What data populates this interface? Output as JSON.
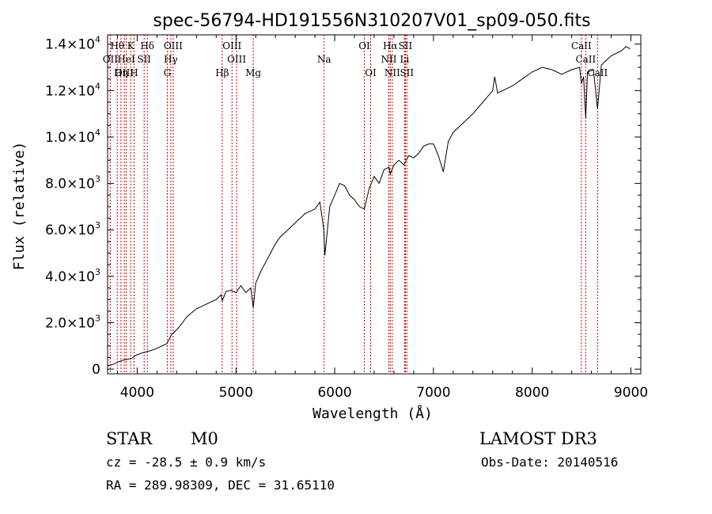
{
  "chart_data": {
    "type": "line",
    "title": "spec-56794-HD191556N310207V01_sp09-050.fits",
    "xlabel": "Wavelength (Å)",
    "ylabel": "Flux (relative)",
    "xlim": [
      3700,
      9100
    ],
    "ylim": [
      -200,
      14400
    ],
    "x_ticks": [
      {
        "value": 4000,
        "label": "4000"
      },
      {
        "value": 5000,
        "label": "5000"
      },
      {
        "value": 6000,
        "label": "6000"
      },
      {
        "value": 7000,
        "label": "7000"
      },
      {
        "value": 8000,
        "label": "8000"
      },
      {
        "value": 9000,
        "label": "9000"
      }
    ],
    "y_ticks": [
      {
        "value": 0,
        "mantissa": "0",
        "exp": ""
      },
      {
        "value": 2000,
        "mantissa": "2.0×10",
        "exp": "3"
      },
      {
        "value": 4000,
        "mantissa": "4.0×10",
        "exp": "3"
      },
      {
        "value": 6000,
        "mantissa": "6.0×10",
        "exp": "3"
      },
      {
        "value": 8000,
        "mantissa": "8.0×10",
        "exp": "3"
      },
      {
        "value": 10000,
        "mantissa": "1.0×10",
        "exp": "4"
      },
      {
        "value": 12000,
        "mantissa": "1.2×10",
        "exp": "4"
      },
      {
        "value": 14000,
        "mantissa": "1.4×10",
        "exp": "4"
      }
    ],
    "spectrum": {
      "name": "flux",
      "x": [
        3700,
        3750,
        3800,
        3850,
        3900,
        3950,
        3970,
        3990,
        4050,
        4100,
        4150,
        4200,
        4250,
        4300,
        4350,
        4400,
        4450,
        4500,
        4600,
        4700,
        4800,
        4850,
        4861,
        4900,
        4950,
        5000,
        5050,
        5100,
        5150,
        5175,
        5200,
        5250,
        5300,
        5350,
        5400,
        5450,
        5500,
        5600,
        5700,
        5800,
        5850,
        5890,
        5900,
        5950,
        6000,
        6050,
        6100,
        6150,
        6200,
        6250,
        6300,
        6350,
        6400,
        6450,
        6500,
        6550,
        6563,
        6600,
        6650,
        6700,
        6750,
        6800,
        6850,
        6900,
        6950,
        7000,
        7050,
        7100,
        7150,
        7200,
        7300,
        7400,
        7500,
        7600,
        7620,
        7650,
        7700,
        7800,
        7900,
        8000,
        8100,
        8200,
        8300,
        8400,
        8480,
        8498,
        8520,
        8542,
        8560,
        8620,
        8662,
        8700,
        8800,
        8900,
        8950,
        8990
      ],
      "values": [
        150,
        200,
        300,
        380,
        420,
        480,
        550,
        600,
        700,
        760,
        820,
        900,
        1000,
        1100,
        1500,
        1700,
        1950,
        2250,
        2600,
        2800,
        3000,
        3200,
        2950,
        3350,
        3400,
        3300,
        3600,
        3300,
        3500,
        2650,
        3700,
        4200,
        4600,
        5000,
        5400,
        5700,
        5900,
        6300,
        6700,
        6900,
        7200,
        6000,
        4900,
        7000,
        7500,
        8000,
        7900,
        7500,
        7300,
        7000,
        6900,
        7800,
        8300,
        8000,
        8600,
        8700,
        8400,
        8800,
        9000,
        8800,
        9200,
        9100,
        9300,
        9600,
        9700,
        9700,
        9200,
        8500,
        9800,
        10200,
        10600,
        11000,
        11500,
        12000,
        12600,
        11900,
        12000,
        12200,
        12500,
        12800,
        13000,
        12900,
        12700,
        12900,
        13000,
        12300,
        12600,
        10800,
        12800,
        12900,
        11200,
        13100,
        13500,
        13700,
        13900,
        13800
      ]
    },
    "lines": [
      {
        "label": "Hθ",
        "wavelength": 3798,
        "row": 0
      },
      {
        "label": "K",
        "wavelength": 3934,
        "row": 0
      },
      {
        "label": "Hδ",
        "wavelength": 4102,
        "row": 0
      },
      {
        "label": "OIII",
        "wavelength": 4364,
        "row": 0
      },
      {
        "label": "OIII",
        "wavelength": 4960,
        "row": 0
      },
      {
        "label": "OI",
        "wavelength": 6300,
        "row": 0
      },
      {
        "label": "Hα",
        "wavelength": 6563,
        "row": 0
      },
      {
        "label": "SII",
        "wavelength": 6716,
        "row": 0
      },
      {
        "label": "CaII",
        "wavelength": 8498,
        "row": 0
      },
      {
        "label": "OII",
        "wavelength": 3727,
        "row": 1
      },
      {
        "label": "HeI",
        "wavelength": 3889,
        "row": 1
      },
      {
        "label": "SII",
        "wavelength": 4070,
        "row": 1
      },
      {
        "label": "Hγ",
        "wavelength": 4340,
        "row": 1
      },
      {
        "label": "OIII",
        "wavelength": 5007,
        "row": 1
      },
      {
        "label": "Na",
        "wavelength": 5893,
        "row": 1
      },
      {
        "label": "NII",
        "wavelength": 6548,
        "row": 1
      },
      {
        "label": "Li",
        "wavelength": 6708,
        "row": 1
      },
      {
        "label": "CaII",
        "wavelength": 8542,
        "row": 1
      },
      {
        "label": "OIII",
        "wavelength": 3869,
        "row": 2
      },
      {
        "label": "Hη",
        "wavelength": 3835,
        "row": 2
      },
      {
        "label": "H",
        "wavelength": 3968,
        "row": 2
      },
      {
        "label": "G",
        "wavelength": 4305,
        "row": 2
      },
      {
        "label": "Hβ",
        "wavelength": 4861,
        "row": 2
      },
      {
        "label": "Mg",
        "wavelength": 5175,
        "row": 2
      },
      {
        "label": "OI",
        "wavelength": 6364,
        "row": 2
      },
      {
        "label": "NII",
        "wavelength": 6583,
        "row": 2
      },
      {
        "label": "SII",
        "wavelength": 6731,
        "row": 2
      },
      {
        "label": "CaII",
        "wavelength": 8662,
        "row": 2
      }
    ]
  },
  "info": {
    "class": "STAR",
    "subclass": "M0",
    "survey": "LAMOST DR3",
    "cz": "cz = -28.5 ± 0.9 km/s",
    "obs_date": "Obs-Date: 20140516",
    "radec": "RA = 289.98309, DEC =  31.65110"
  }
}
